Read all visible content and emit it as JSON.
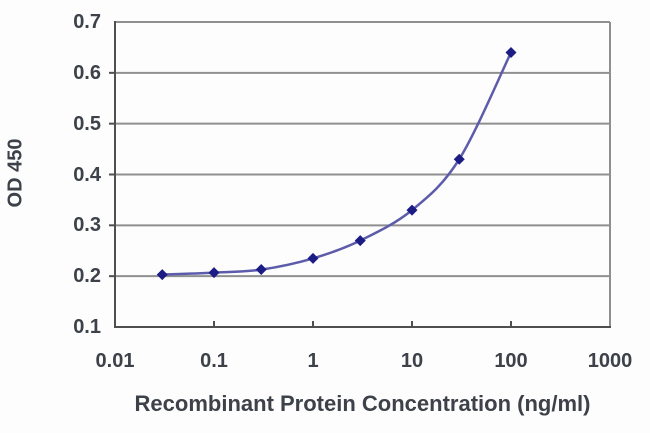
{
  "figure": {
    "background": "#fdfdfd"
  },
  "chart_data": {
    "type": "line",
    "title": "",
    "xlabel": "Recombinant Protein Concentration (ng/ml)",
    "ylabel": "OD 450",
    "x": [
      0.03,
      0.1,
      0.3,
      1,
      3,
      10,
      30,
      100
    ],
    "y": [
      0.203,
      0.207,
      0.213,
      0.235,
      0.27,
      0.33,
      0.43,
      0.64
    ],
    "x_scale": "log",
    "y_scale": "linear",
    "xlim": [
      0.01,
      1000
    ],
    "ylim": [
      0.1,
      0.7
    ],
    "xticks": {
      "values": [
        0.01,
        0.1,
        1,
        10,
        100,
        1000
      ],
      "labels": [
        "0.01",
        "0.1",
        "1",
        "10",
        "100",
        "1000"
      ]
    },
    "yticks": {
      "values": [
        0.1,
        0.2,
        0.3,
        0.4,
        0.5,
        0.6,
        0.7
      ],
      "labels": [
        "0.1",
        "0.2",
        "0.3",
        "0.4",
        "0.5",
        "0.6",
        "0.7"
      ]
    },
    "grid": "horizontal",
    "legend": "none",
    "marker": "diamond",
    "line_smooth": true,
    "colors": {
      "line": "#5c5cab",
      "marker": "#1c1c85",
      "gridline": "#8f8f8f",
      "box_border": "#8f8f8f",
      "axis": "#4f4f4f",
      "text": "#3d4149"
    }
  }
}
